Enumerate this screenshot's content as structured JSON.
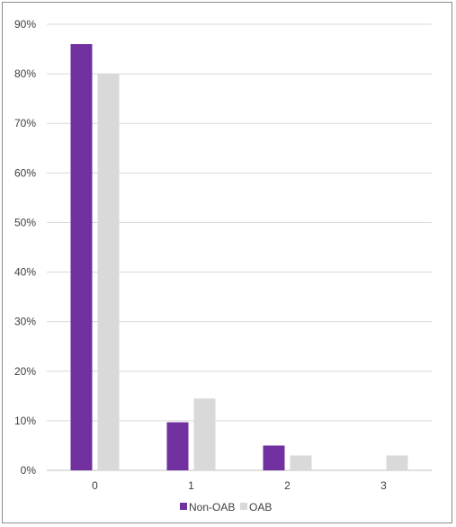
{
  "chart_data": {
    "type": "bar",
    "categories": [
      "0",
      "1",
      "2",
      "3"
    ],
    "series": [
      {
        "name": "Non-OAB",
        "color": "#7030a0",
        "values": [
          86,
          9.7,
          5,
          0
        ]
      },
      {
        "name": "OAB",
        "color": "#d9d9d9",
        "values": [
          80,
          14.5,
          3,
          3
        ]
      }
    ],
    "ylim": [
      0,
      90
    ],
    "ytick_values": [
      0,
      10,
      20,
      30,
      40,
      50,
      60,
      70,
      80,
      90
    ],
    "ytick_labels": [
      "0%",
      "10%",
      "20%",
      "30%",
      "40%",
      "50%",
      "60%",
      "70%",
      "80%",
      "90%"
    ],
    "grid": true,
    "legend_position": "bottom"
  }
}
